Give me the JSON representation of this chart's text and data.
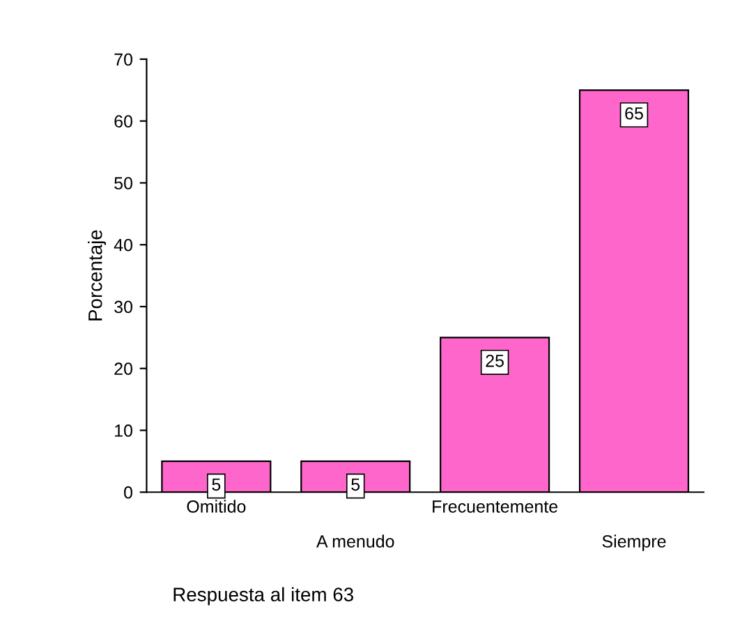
{
  "chart_data": {
    "type": "bar",
    "categories": [
      "Omitido",
      "A menudo",
      "Frecuentemente",
      "Siempre"
    ],
    "values": [
      5,
      5,
      25,
      65
    ],
    "color": "#ff66cc",
    "ylim": [
      0,
      70
    ],
    "yticks": [
      0,
      10,
      20,
      30,
      40,
      50,
      60,
      70
    ],
    "ylabel": "Porcentaje",
    "xlabel": "Respuesta al item 63",
    "data_labels": true,
    "grid": false
  }
}
